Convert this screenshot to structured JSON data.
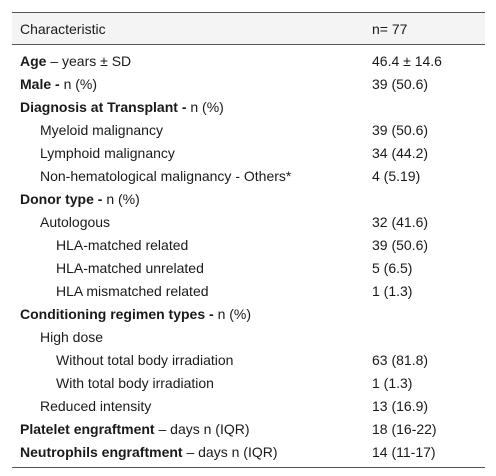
{
  "header": {
    "characteristic": "Characteristic",
    "n": "n= 77"
  },
  "rows": [
    {
      "bold": "Age",
      "rest": " – years ± SD",
      "value": "46.4 ± 14.6"
    },
    {
      "bold": "Male - ",
      "rest": "n (%)",
      "value": "39 (50.6)"
    },
    {
      "bold": "Diagnosis at Transplant - ",
      "rest": "n (%)",
      "value": ""
    },
    {
      "label": "Myeloid malignancy",
      "value": "39 (50.6)"
    },
    {
      "label": "Lymphoid malignancy",
      "value": "34 (44.2)"
    },
    {
      "label": "Non-hematological malignancy - Others*",
      "value": "4 (5.19)"
    },
    {
      "bold": "Donor type - ",
      "rest": "n (%)",
      "value": ""
    },
    {
      "label": "Autologous",
      "value": "32 (41.6)"
    },
    {
      "label": "HLA-matched related",
      "value": "39 (50.6)"
    },
    {
      "label": "HLA-matched unrelated",
      "value": "5 (6.5)"
    },
    {
      "label": "HLA mismatched related",
      "value": "1 (1.3)"
    },
    {
      "bold": "Conditioning regimen types - ",
      "rest": "n (%)",
      "value": ""
    },
    {
      "label": "High dose",
      "value": ""
    },
    {
      "label": "Without total body irradiation",
      "value": "63 (81.8)"
    },
    {
      "label": "With total body irradiation",
      "value": "1 (1.3)"
    },
    {
      "label": "Reduced intensity",
      "value": "13 (16.9)"
    },
    {
      "bold": "Platelet engraftment",
      "rest": " – days n (IQR)",
      "value": "18 (16-22)"
    },
    {
      "bold": "Neutrophils engraftment",
      "rest": " – days n (IQR)",
      "value": "14 (11-17)"
    }
  ]
}
